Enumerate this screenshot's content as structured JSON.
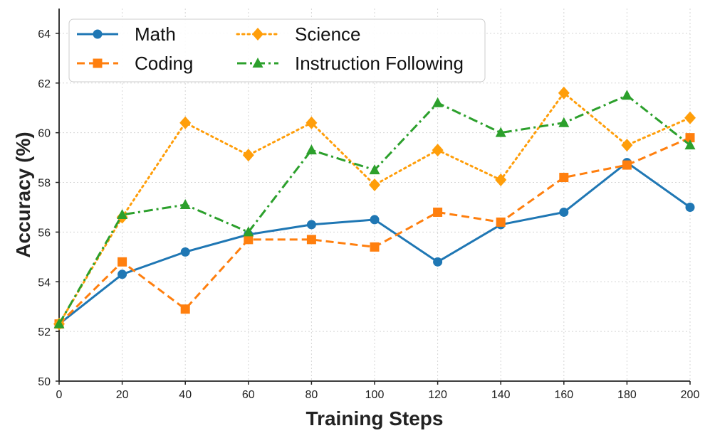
{
  "chart_data": {
    "type": "line",
    "title": "",
    "xlabel": "Training Steps",
    "ylabel": "Accuracy (%)",
    "x": [
      0,
      20,
      40,
      60,
      80,
      100,
      120,
      140,
      160,
      180,
      200
    ],
    "xlim": [
      0,
      200
    ],
    "ylim": [
      50,
      65
    ],
    "xticks": [
      0,
      20,
      40,
      60,
      80,
      100,
      120,
      140,
      160,
      180,
      200
    ],
    "yticks": [
      50,
      52,
      54,
      56,
      58,
      60,
      62,
      64
    ],
    "grid": true,
    "legend_position": "top-left",
    "series": [
      {
        "name": "Math",
        "color": "#1f77b4",
        "marker": "circle",
        "linestyle": "solid",
        "values": [
          52.3,
          54.3,
          55.2,
          55.9,
          56.3,
          56.5,
          54.8,
          56.3,
          56.8,
          58.8,
          57.0
        ]
      },
      {
        "name": "Coding",
        "color": "#ff7f0e",
        "marker": "square",
        "linestyle": "dashed",
        "values": [
          52.3,
          54.8,
          52.9,
          55.7,
          55.7,
          55.4,
          56.8,
          56.4,
          58.2,
          58.7,
          59.8
        ]
      },
      {
        "name": "Science",
        "color": "#ff9e0a",
        "marker": "diamond",
        "linestyle": "dotted",
        "values": [
          52.3,
          56.6,
          60.4,
          59.1,
          60.4,
          57.9,
          59.3,
          58.1,
          61.6,
          59.5,
          60.6
        ]
      },
      {
        "name": "Instruction Following",
        "color": "#2ca02c",
        "marker": "triangle",
        "linestyle": "dashdot",
        "values": [
          52.3,
          56.7,
          57.1,
          56.0,
          59.3,
          58.5,
          61.2,
          60.0,
          60.4,
          61.5,
          59.5
        ]
      }
    ]
  }
}
